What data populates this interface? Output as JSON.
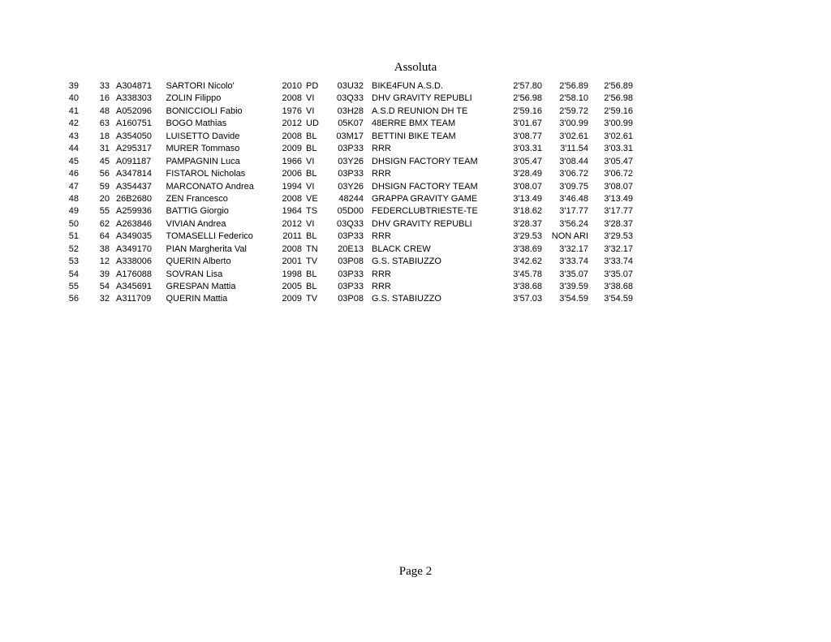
{
  "title": "Assoluta",
  "footer": {
    "page_label": "Page 2"
  },
  "colors": {
    "page_background": "#ffffff",
    "text": "#000000"
  },
  "table": {
    "columns": [
      "pos",
      "bib",
      "code",
      "name",
      "year",
      "prov",
      "team_code",
      "team",
      "run1",
      "run2",
      "best"
    ],
    "rows": [
      {
        "pos": "39",
        "bib": "33",
        "code": "A304871",
        "name": "SARTORI Nicolo'",
        "year": "2010",
        "prov": "PD",
        "team_code": "03U32",
        "team": "BIKE4FUN A.S.D.",
        "run1": "2'57.80",
        "run2": "2'56.89",
        "best": "2'56.89"
      },
      {
        "pos": "40",
        "bib": "16",
        "code": "A338303",
        "name": "ZOLIN Filippo",
        "year": "2008",
        "prov": "VI",
        "team_code": "03Q33",
        "team": "DHV GRAVITY REPUBLI",
        "run1": "2'56.98",
        "run2": "2'58.10",
        "best": "2'56.98"
      },
      {
        "pos": "41",
        "bib": "48",
        "code": "A052096",
        "name": "BONICCIOLI Fabio",
        "year": "1976",
        "prov": "VI",
        "team_code": "03H28",
        "team": "A.S.D REUNION DH TE",
        "run1": "2'59.16",
        "run2": "2'59.72",
        "best": "2'59.16"
      },
      {
        "pos": "42",
        "bib": "63",
        "code": "A160751",
        "name": "BOGO Mathias",
        "year": "2012",
        "prov": "UD",
        "team_code": "05K07",
        "team": "48ERRE BMX TEAM",
        "run1": "3'01.67",
        "run2": "3'00.99",
        "best": "3'00.99"
      },
      {
        "pos": "43",
        "bib": "18",
        "code": "A354050",
        "name": "LUISETTO Davide",
        "year": "2008",
        "prov": "BL",
        "team_code": "03M17",
        "team": "BETTINI BIKE TEAM",
        "run1": "3'08.77",
        "run2": "3'02.61",
        "best": "3'02.61"
      },
      {
        "pos": "44",
        "bib": "31",
        "code": "A295317",
        "name": "MURER Tommaso",
        "year": "2009",
        "prov": "BL",
        "team_code": "03P33",
        "team": "RRR",
        "run1": "3'03.31",
        "run2": "3'11.54",
        "best": "3'03.31"
      },
      {
        "pos": "45",
        "bib": "45",
        "code": "A091187",
        "name": "PAMPAGNIN Luca",
        "year": "1966",
        "prov": "VI",
        "team_code": "03Y26",
        "team": "DHSIGN FACTORY TEAM",
        "run1": "3'05.47",
        "run2": "3'08.44",
        "best": "3'05.47"
      },
      {
        "pos": "46",
        "bib": "56",
        "code": "A347814",
        "name": "FISTAROL Nicholas",
        "year": "2006",
        "prov": "BL",
        "team_code": "03P33",
        "team": "RRR",
        "run1": "3'28.49",
        "run2": "3'06.72",
        "best": "3'06.72"
      },
      {
        "pos": "47",
        "bib": "59",
        "code": "A354437",
        "name": "MARCONATO Andrea",
        "year": "1994",
        "prov": "VI",
        "team_code": "03Y26",
        "team": "DHSIGN FACTORY TEAM",
        "run1": "3'08.07",
        "run2": "3'09.75",
        "best": "3'08.07"
      },
      {
        "pos": "48",
        "bib": "20",
        "code": "26B2680",
        "name": "ZEN Francesco",
        "year": "2008",
        "prov": "VE",
        "team_code": "48244",
        "team": "GRAPPA GRAVITY GAME",
        "run1": "3'13.49",
        "run2": "3'46.48",
        "best": "3'13.49"
      },
      {
        "pos": "49",
        "bib": "55",
        "code": "A259936",
        "name": "BATTIG Giorgio",
        "year": "1964",
        "prov": "TS",
        "team_code": "05D00",
        "team": "FEDERCLUBTRIESTE-TE",
        "run1": "3'18.62",
        "run2": "3'17.77",
        "best": "3'17.77"
      },
      {
        "pos": "50",
        "bib": "62",
        "code": "A263846",
        "name": "VIVIAN Andrea",
        "year": "2012",
        "prov": "VI",
        "team_code": "03Q33",
        "team": "DHV GRAVITY REPUBLI",
        "run1": "3'28.37",
        "run2": "3'56.24",
        "best": "3'28.37"
      },
      {
        "pos": "51",
        "bib": "64",
        "code": "A349035",
        "name": "TOMASELLI Federico",
        "year": "2011",
        "prov": "BL",
        "team_code": "03P33",
        "team": "RRR",
        "run1": "3'29.53",
        "run2": "NON ARI",
        "best": "3'29.53"
      },
      {
        "pos": "52",
        "bib": "38",
        "code": "A349170",
        "name": "PIAN Margherita Val",
        "year": "2008",
        "prov": "TN",
        "team_code": "20E13",
        "team": "BLACK CREW",
        "run1": "3'38.69",
        "run2": "3'32.17",
        "best": "3'32.17"
      },
      {
        "pos": "53",
        "bib": "12",
        "code": "A338006",
        "name": "QUERIN Alberto",
        "year": "2001",
        "prov": "TV",
        "team_code": "03P08",
        "team": "G.S. STABIUZZO",
        "run1": "3'42.62",
        "run2": "3'33.74",
        "best": "3'33.74"
      },
      {
        "pos": "54",
        "bib": "39",
        "code": "A176088",
        "name": "SOVRAN Lisa",
        "year": "1998",
        "prov": "BL",
        "team_code": "03P33",
        "team": "RRR",
        "run1": "3'45.78",
        "run2": "3'35.07",
        "best": "3'35.07"
      },
      {
        "pos": "55",
        "bib": "54",
        "code": "A345691",
        "name": "GRESPAN Mattia",
        "year": "2005",
        "prov": "BL",
        "team_code": "03P33",
        "team": "RRR",
        "run1": "3'38.68",
        "run2": "3'39.59",
        "best": "3'38.68"
      },
      {
        "pos": "56",
        "bib": "32",
        "code": "A311709",
        "name": "QUERIN Mattia",
        "year": "2009",
        "prov": "TV",
        "team_code": "03P08",
        "team": "G.S. STABIUZZO",
        "run1": "3'57.03",
        "run2": "3'54.59",
        "best": "3'54.59"
      }
    ]
  }
}
